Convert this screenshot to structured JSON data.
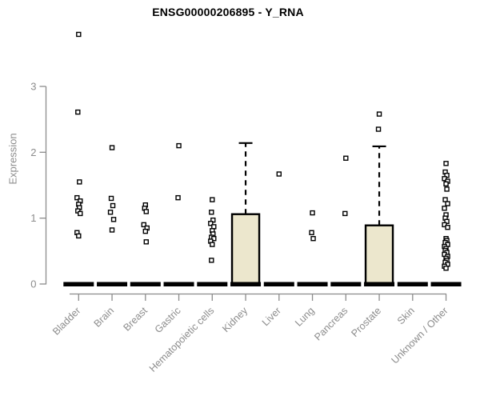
{
  "chart_data": {
    "type": "boxplot",
    "title": "ENSG00000206895 - Y_RNA",
    "ylabel": "Expression",
    "xlabel": "",
    "yticks": [
      0,
      1,
      2,
      3
    ],
    "ylim": [
      0,
      3.9
    ],
    "grid": false,
    "legend": "none",
    "colors": {
      "box_fill": "#ece7cd",
      "box_stroke": "#000000",
      "median": "#000000",
      "outlier": "#000000",
      "axis": "#8c8c8c",
      "title": "#000000",
      "background": "#ffffff"
    },
    "groups": [
      {
        "label": "Bladder",
        "q1": 0,
        "median": 0,
        "q3": 0,
        "whisker_high": 0,
        "outliers": [
          3.79,
          2.61,
          1.55,
          1.31,
          1.26,
          1.21,
          1.16,
          1.11,
          1.07,
          0.78,
          0.73
        ]
      },
      {
        "label": "Brain",
        "q1": 0,
        "median": 0,
        "q3": 0,
        "whisker_high": 0,
        "outliers": [
          2.07,
          1.3,
          1.19,
          1.09,
          0.98,
          0.82
        ]
      },
      {
        "label": "Breast",
        "q1": 0,
        "median": 0,
        "q3": 0,
        "whisker_high": 0,
        "outliers": [
          1.2,
          1.15,
          1.1,
          0.9,
          0.85,
          0.8,
          0.64
        ]
      },
      {
        "label": "Gastric",
        "q1": 0,
        "median": 0,
        "q3": 0,
        "whisker_high": 0,
        "outliers": [
          2.1,
          1.31
        ]
      },
      {
        "label": "Hematopoietic cells",
        "q1": 0,
        "median": 0,
        "q3": 0,
        "whisker_high": 0,
        "outliers": [
          1.28,
          1.09,
          0.97,
          0.92,
          0.87,
          0.81,
          0.76,
          0.71,
          0.69,
          0.65,
          0.6,
          0.36
        ]
      },
      {
        "label": "Kidney",
        "q1": 0,
        "median": 0,
        "q3": 1.06,
        "whisker_high": 2.14,
        "outliers": []
      },
      {
        "label": "Liver",
        "q1": 0,
        "median": 0,
        "q3": 0,
        "whisker_high": 0,
        "outliers": [
          1.67
        ]
      },
      {
        "label": "Lung",
        "q1": 0,
        "median": 0,
        "q3": 0,
        "whisker_high": 0,
        "outliers": [
          1.08,
          0.78,
          0.69
        ]
      },
      {
        "label": "Pancreas",
        "q1": 0,
        "median": 0,
        "q3": 0,
        "whisker_high": 0,
        "outliers": [
          1.91,
          1.07
        ]
      },
      {
        "label": "Prostate",
        "q1": 0,
        "median": 0,
        "q3": 0.89,
        "whisker_high": 2.09,
        "outliers": [
          2.58,
          2.35
        ]
      },
      {
        "label": "Skin",
        "q1": 0,
        "median": 0,
        "q3": 0,
        "whisker_high": 0,
        "outliers": []
      },
      {
        "label": "Unknown / Other",
        "q1": 0,
        "median": 0,
        "q3": 0,
        "whisker_high": 0,
        "outliers": [
          1.83,
          1.7,
          1.65,
          1.6,
          1.56,
          1.52,
          1.44,
          1.28,
          1.22,
          1.15,
          1.05,
          1.0,
          0.95,
          0.9,
          0.86,
          0.69,
          0.66,
          0.63,
          0.6,
          0.57,
          0.54,
          0.51,
          0.48,
          0.45,
          0.42,
          0.39,
          0.36,
          0.33,
          0.3,
          0.27,
          0.24
        ]
      }
    ]
  }
}
